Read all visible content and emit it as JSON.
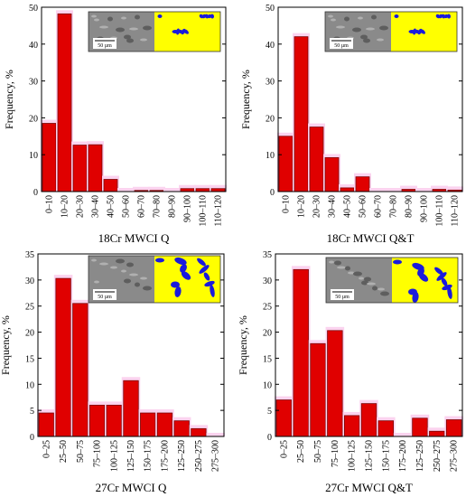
{
  "chart_data": [
    {
      "type": "bar",
      "title": "18Cr MWCI Q",
      "xlabel": "",
      "ylabel": "Frequency, %",
      "ylim": [
        0,
        50
      ],
      "yticks": [
        0,
        10,
        20,
        30,
        40,
        50
      ],
      "categories": [
        "0–10",
        "10–20",
        "20–30",
        "30–40",
        "40–50",
        "50–60",
        "60–70",
        "70–80",
        "80–90",
        "90–100",
        "100–110",
        "110–120"
      ],
      "values": [
        18.5,
        48.2,
        12.6,
        12.7,
        3.3,
        0,
        0.3,
        0.3,
        0,
        0.8,
        0.8,
        0.8
      ],
      "inset_scale": "50 µm",
      "bar_color": "#e00000"
    },
    {
      "type": "bar",
      "title": "18Cr MWCI Q&T",
      "xlabel": "",
      "ylabel": "Frequency, %",
      "ylim": [
        0,
        50
      ],
      "yticks": [
        0,
        10,
        20,
        30,
        40,
        50
      ],
      "categories": [
        "0–10",
        "10–20",
        "20–30",
        "30–40",
        "40–50",
        "50–60",
        "60–70",
        "70–80",
        "80–90",
        "90–100",
        "100–110",
        "110–120"
      ],
      "values": [
        15.0,
        42.0,
        17.5,
        9.2,
        1.0,
        4.0,
        0,
        0,
        0.6,
        0,
        0.6,
        0.4
      ],
      "inset_scale": "50 µm",
      "bar_color": "#e00000"
    },
    {
      "type": "bar",
      "title": "27Cr MWCI Q",
      "xlabel": "",
      "ylabel": "Frequency, %",
      "ylim": [
        0,
        35
      ],
      "yticks": [
        0,
        5,
        10,
        15,
        20,
        25,
        30,
        35
      ],
      "categories": [
        "0–25",
        "25–50",
        "50–75",
        "75–100",
        "100–125",
        "125–150",
        "150–175",
        "175–200",
        "125–250",
        "250–275",
        "275–300"
      ],
      "values": [
        4.5,
        30.3,
        25.5,
        6.0,
        6.0,
        10.7,
        4.5,
        4.5,
        3.0,
        1.5,
        0
      ],
      "inset_scale": "50 µm",
      "bar_color": "#e00000"
    },
    {
      "type": "bar",
      "title": "27Cr MWCI Q&T",
      "xlabel": "",
      "ylabel": "Frequency, %",
      "ylim": [
        0,
        35
      ],
      "yticks": [
        0,
        5,
        10,
        15,
        20,
        25,
        30,
        35
      ],
      "categories": [
        "0–25",
        "25–50",
        "50–75",
        "75–100",
        "100–125",
        "125–150",
        "150–175",
        "175–200",
        "125–250",
        "250–275",
        "275–300"
      ],
      "values": [
        7.0,
        32.0,
        17.8,
        20.3,
        4.0,
        6.3,
        3.0,
        0,
        3.5,
        1.0,
        3.2
      ],
      "inset_scale": "50 µm",
      "bar_color": "#e00000"
    }
  ]
}
